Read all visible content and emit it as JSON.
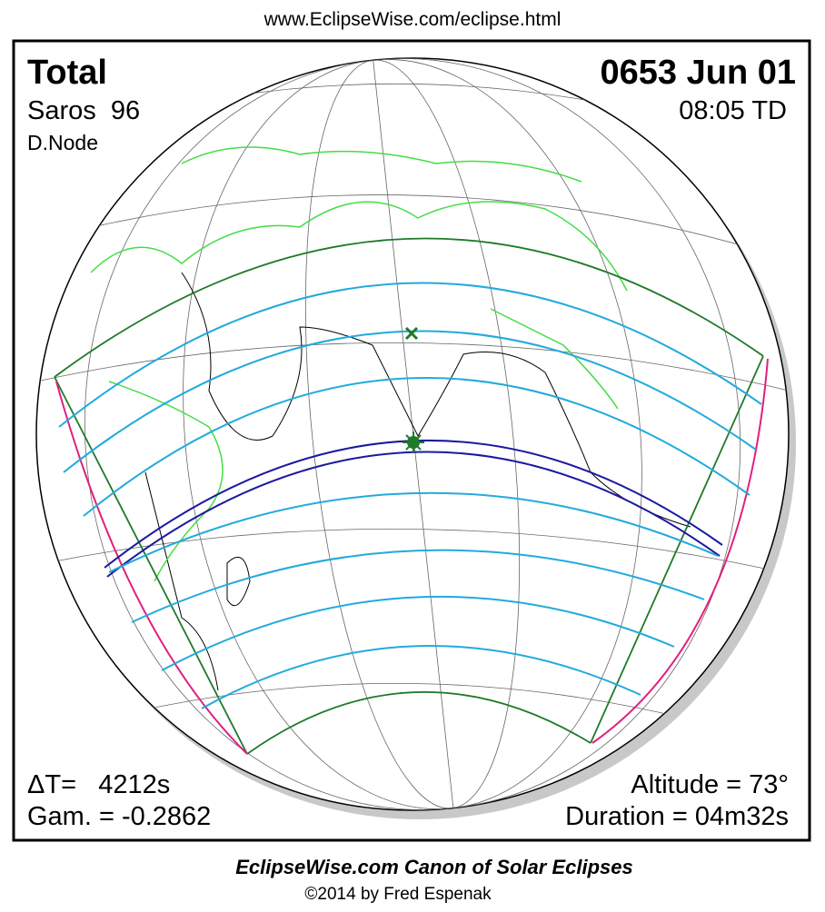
{
  "header": {
    "url": "www.EclipseWise.com/eclipse.html"
  },
  "info": {
    "type": "Total",
    "date": "0653 Jun 01",
    "saros": "Saros  96",
    "time": "08:05 TD",
    "node": "D.Node",
    "delta_t": "ΔT=   4212s",
    "altitude": "Altitude = 73°",
    "gamma": "Gam. = -0.2862",
    "duration": "Duration = 04m32s"
  },
  "footer": {
    "title": "EclipseWise.com Canon of Solar Eclipses",
    "copyright": "©2014 by Fred Espenak"
  }
}
